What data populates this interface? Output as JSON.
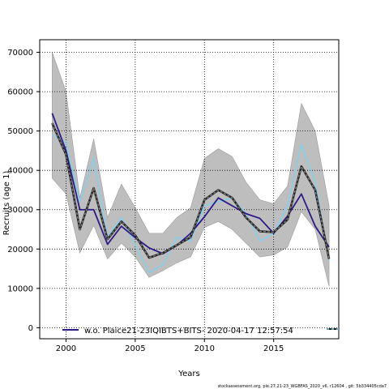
{
  "chart_data": {
    "type": "line",
    "title": "",
    "xlabel": "Years",
    "ylabel": "Recruits (age 1)",
    "xlim": [
      1998.1,
      2019.7
    ],
    "ylim": [
      -2800,
      73200
    ],
    "xticks": [
      2000,
      2005,
      2010,
      2015
    ],
    "yticks": [
      0,
      10000,
      20000,
      30000,
      40000,
      50000,
      60000,
      70000
    ],
    "grid": true,
    "x": [
      1999,
      2000,
      2001,
      2002,
      2003,
      2004,
      2005,
      2006,
      2007,
      2008,
      2009,
      2010,
      2011,
      2012,
      2013,
      2014,
      2015,
      2016,
      2017,
      2018,
      2019
    ],
    "band": {
      "color": "#bebebe",
      "lower": [
        38000,
        34000,
        19000,
        26000,
        17500,
        21500,
        18000,
        12800,
        14500,
        16500,
        18000,
        25500,
        27000,
        25000,
        21500,
        18000,
        18500,
        20500,
        29500,
        25000,
        10500
      ],
      "upper": [
        70000,
        60000,
        33000,
        48000,
        28000,
        36500,
        30500,
        24000,
        24000,
        28000,
        30500,
        43000,
        45500,
        43500,
        37000,
        32500,
        31500,
        36000,
        57000,
        50000,
        31000
      ]
    },
    "series": [
      {
        "name": "w.o. Plaice21-23IQIBTS+BITS- 2020-04-17 12:57:54",
        "color": "#2e1a87",
        "values": [
          54500,
          45000,
          30000,
          30000,
          21200,
          25800,
          22900,
          20300,
          18800,
          20900,
          24000,
          28200,
          33000,
          31000,
          29000,
          27800,
          24000,
          28400,
          34000,
          25800,
          20500
        ]
      },
      {
        "name": "",
        "color": "#87ceeb",
        "values": [
          49000,
          47000,
          32000,
          43000,
          23000,
          28000,
          21000,
          14000,
          16000,
          23000,
          22000,
          31000,
          32000,
          33000,
          29000,
          22000,
          24000,
          31000,
          46500,
          37000,
          17000
        ]
      },
      {
        "name": "",
        "color": "#222222",
        "dashed_overlay": "#888888",
        "values": [
          52000,
          44000,
          25000,
          35500,
          22500,
          27000,
          23500,
          17800,
          19000,
          21000,
          23000,
          32500,
          35000,
          33000,
          28000,
          24500,
          24300,
          27500,
          41000,
          35000,
          17500
        ]
      }
    ],
    "legend": {
      "placement": "bottom-left",
      "text": "w.o. Plaice21-23IQIBTS+BITS- 2020-04-17 12:57:54"
    },
    "footer": "stockassessment.org, ple.27.21-23_WGBFAS_2020_v6, r12604 , git: 5b334405cda7"
  }
}
